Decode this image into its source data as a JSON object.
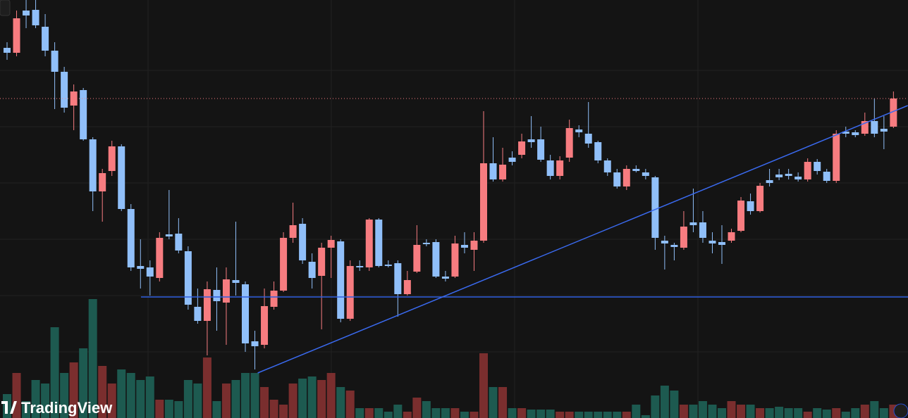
{
  "logo": "TradingView",
  "chart_data": {
    "type": "candlestick",
    "up_color": "#f77c80",
    "down_color": "#90bff9",
    "volume_up_color": "#7a2e2e",
    "volume_down_color": "#1d5a50",
    "ylim": [
      0,
      594
    ],
    "y2lim": [
      0,
      594
    ],
    "values": [
      [
        526,
        534,
        509,
        519
      ],
      [
        519,
        579,
        514,
        568
      ],
      [
        579,
        594,
        554,
        572
      ],
      [
        580,
        594,
        554,
        558
      ],
      [
        556,
        574,
        514,
        522
      ],
      [
        522,
        534,
        439,
        492
      ],
      [
        492,
        499,
        434,
        441
      ],
      [
        444,
        474,
        409,
        464
      ],
      [
        466,
        469,
        394,
        396
      ],
      [
        396,
        399,
        294,
        322
      ],
      [
        322,
        354,
        279,
        348
      ],
      [
        351,
        394,
        344,
        386
      ],
      [
        386,
        389,
        294,
        297
      ],
      [
        297,
        304,
        209,
        214
      ],
      [
        216,
        254,
        184,
        212
      ],
      [
        214,
        224,
        174,
        201
      ],
      [
        199,
        264,
        194,
        256
      ],
      [
        261,
        324,
        254,
        258
      ],
      [
        262,
        284,
        234,
        238
      ],
      [
        237,
        244,
        154,
        161
      ],
      [
        158,
        184,
        134,
        138
      ],
      [
        138,
        194,
        89,
        183
      ],
      [
        182,
        214,
        124,
        166
      ],
      [
        164,
        214,
        104,
        197
      ],
      [
        196,
        279,
        174,
        192
      ],
      [
        190,
        194,
        94,
        106
      ],
      [
        109,
        124,
        69,
        102
      ],
      [
        104,
        184,
        99,
        159
      ],
      [
        158,
        194,
        154,
        181
      ],
      [
        181,
        264,
        179,
        256
      ],
      [
        256,
        306,
        249,
        274
      ],
      [
        276,
        284,
        219,
        224
      ],
      [
        222,
        234,
        184,
        199
      ],
      [
        202,
        249,
        126,
        242
      ],
      [
        242,
        259,
        199,
        253
      ],
      [
        251,
        254,
        136,
        141
      ],
      [
        141,
        224,
        138,
        216
      ],
      [
        216,
        224,
        209,
        214
      ],
      [
        214,
        284,
        209,
        282
      ],
      [
        282,
        284,
        214,
        216
      ],
      [
        218,
        224,
        214,
        216
      ],
      [
        220,
        224,
        144,
        176
      ],
      [
        176,
        209,
        174,
        196
      ],
      [
        208,
        274,
        206,
        246
      ],
      [
        249,
        254,
        244,
        247
      ],
      [
        250,
        254,
        199,
        201
      ],
      [
        201,
        209,
        194,
        198
      ],
      [
        201,
        259,
        199,
        248
      ],
      [
        246,
        264,
        234,
        242
      ],
      [
        239,
        264,
        209,
        252
      ],
      [
        252,
        436,
        249,
        362
      ],
      [
        362,
        399,
        336,
        339
      ],
      [
        339,
        384,
        336,
        360
      ],
      [
        370,
        379,
        359,
        364
      ],
      [
        374,
        404,
        369,
        393
      ],
      [
        396,
        429,
        384,
        392
      ],
      [
        396,
        414,
        364,
        367
      ],
      [
        366,
        374,
        339,
        344
      ],
      [
        344,
        372,
        339,
        366
      ],
      [
        370,
        424,
        364,
        412
      ],
      [
        410,
        416,
        399,
        406
      ],
      [
        404,
        449,
        384,
        390
      ],
      [
        392,
        394,
        362,
        366
      ],
      [
        366,
        369,
        344,
        349
      ],
      [
        349,
        354,
        326,
        329
      ],
      [
        329,
        359,
        324,
        354
      ],
      [
        354,
        359,
        349,
        351
      ],
      [
        349,
        354,
        339,
        344
      ],
      [
        342,
        344,
        239,
        256
      ],
      [
        252,
        259,
        211,
        248
      ],
      [
        246,
        249,
        224,
        243
      ],
      [
        242,
        294,
        239,
        272
      ],
      [
        278,
        326,
        264,
        274
      ],
      [
        278,
        294,
        249,
        256
      ],
      [
        252,
        264,
        234,
        248
      ],
      [
        250,
        274,
        219,
        246
      ],
      [
        252,
        269,
        249,
        264
      ],
      [
        266,
        314,
        264,
        309
      ],
      [
        308,
        319,
        289,
        294
      ],
      [
        294,
        334,
        292,
        330
      ],
      [
        338,
        354,
        329,
        334
      ],
      [
        346,
        354,
        338,
        342
      ],
      [
        347,
        354,
        339,
        344
      ],
      [
        343,
        349,
        336,
        339
      ],
      [
        339,
        369,
        336,
        364
      ],
      [
        364,
        368,
        346,
        351
      ],
      [
        350,
        354,
        334,
        337
      ],
      [
        337,
        409,
        334,
        404
      ],
      [
        407,
        414,
        399,
        404
      ],
      [
        406,
        409,
        399,
        402
      ],
      [
        404,
        434,
        401,
        422
      ],
      [
        422,
        454,
        399,
        404
      ],
      [
        411,
        429,
        382,
        407
      ],
      [
        414,
        464,
        412,
        454
      ]
    ],
    "volume": [
      34,
      64,
      24,
      54,
      49,
      129,
      64,
      79,
      99,
      169,
      74,
      49,
      69,
      64,
      54,
      59,
      26,
      26,
      24,
      54,
      49,
      86,
      24,
      49,
      54,
      64,
      64,
      44,
      26,
      19,
      49,
      56,
      59,
      54,
      64,
      44,
      39,
      14,
      14,
      14,
      9,
      19,
      9,
      29,
      24,
      14,
      14,
      14,
      9,
      9,
      92,
      44,
      44,
      14,
      14,
      12,
      12,
      12,
      9,
      9,
      9,
      9,
      9,
      9,
      9,
      9,
      19,
      4,
      32,
      46,
      39,
      19,
      19,
      24,
      19,
      14,
      24,
      19,
      19,
      14,
      14,
      16,
      14,
      14,
      9,
      14,
      12,
      14,
      9,
      14,
      19,
      24,
      14,
      19
    ],
    "hline": {
      "value": 172,
      "color": "#2f5fe0"
    },
    "trendline": {
      "x": [
        26.3,
        94.5
      ],
      "values": [
        64,
        444
      ],
      "color": "#3a6af0"
    }
  }
}
